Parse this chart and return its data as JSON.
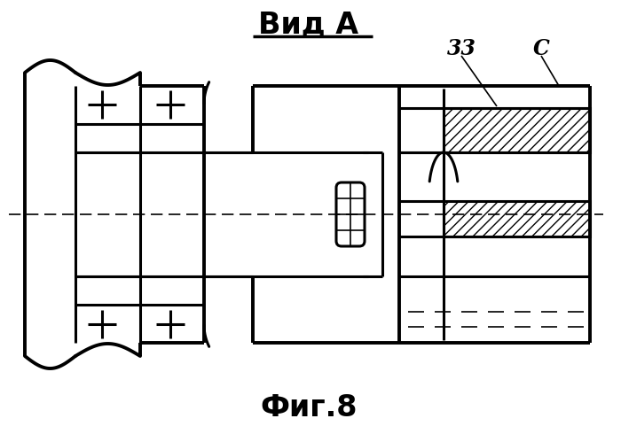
{
  "title": "Вид А",
  "subtitle": "Фиг.8",
  "bg_color": "#ffffff",
  "line_color": "#000000",
  "label_33": "33",
  "label_6": "С",
  "title_fontsize": 24,
  "subtitle_fontsize": 24
}
